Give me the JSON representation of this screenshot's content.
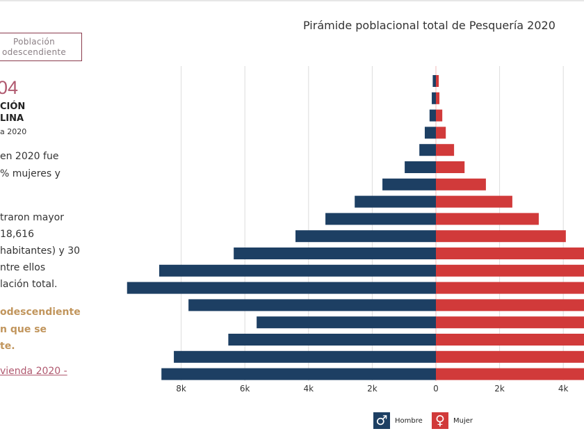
{
  "left_panel": {
    "tab_button": [
      "Población",
      "odescendiente"
    ],
    "big_number": "04",
    "heading_lines": [
      "CIÓN",
      "LINA"
    ],
    "subheading": "a 2020",
    "paragraph1": [
      " en 2020 fue",
      "% mujeres y"
    ],
    "paragraph2": [
      "traron mayor",
      "18,616",
      "habitantes) y 30",
      "ntre ellos",
      "lación total."
    ],
    "highlight": [
      "odescendiente",
      "n que se",
      "te."
    ],
    "source_link": "vienda 2020 -"
  },
  "chart_data": {
    "type": "bar",
    "orientation": "horizontal-population-pyramid",
    "title": "Pirámide poblacional total de Pesquería 2020",
    "xlabel": "",
    "ylabel": "",
    "x_tick_labels": [
      "8k",
      "6k",
      "4k",
      "2k",
      "0",
      "2k",
      "4k"
    ],
    "xlim": [
      -10000,
      10000
    ],
    "grid": true,
    "legend_position": "bottom",
    "series": [
      {
        "name": "Hombre",
        "color": "#1d3f63",
        "icon": "male-symbol-icon",
        "values": [
          100,
          130,
          200,
          350,
          520,
          980,
          1680,
          2550,
          3470,
          4410,
          6350,
          8690,
          9700,
          7770,
          5630,
          6520,
          8230,
          8620
        ]
      },
      {
        "name": "Mujer",
        "color": "#d13a3a",
        "icon": "female-symbol-icon",
        "values": [
          90,
          110,
          200,
          310,
          570,
          900,
          1570,
          2400,
          3230,
          4080,
          6200,
          8400,
          9400,
          7900,
          5900,
          6700,
          8300,
          8700
        ]
      }
    ]
  }
}
